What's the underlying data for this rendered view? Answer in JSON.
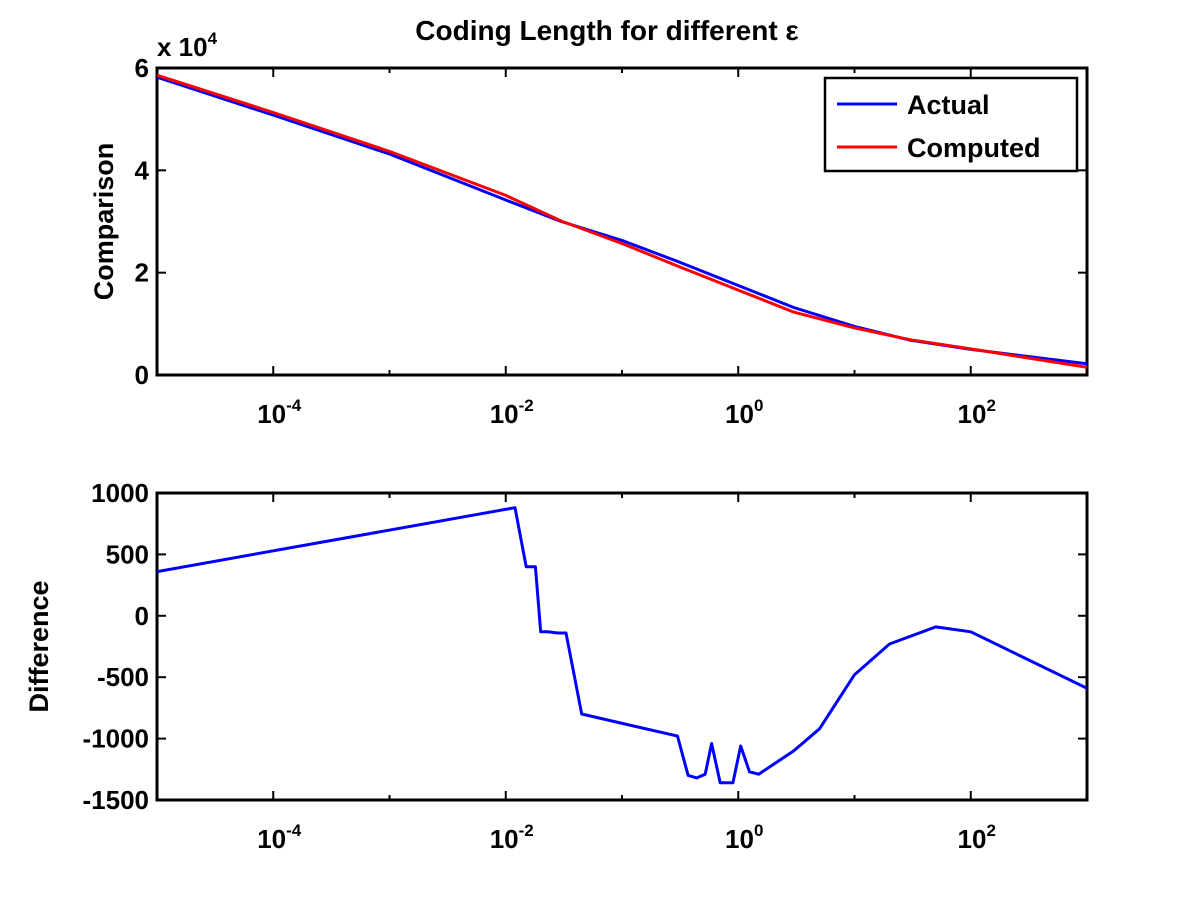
{
  "figure": {
    "title": "Coding Length for different ε"
  },
  "chart_data": [
    {
      "type": "line",
      "xscale": "log",
      "xlim": [
        1e-05,
        1000
      ],
      "ylim": [
        0,
        60000
      ],
      "ylabel": "Comparison",
      "exponent_label": {
        "prefix": "x 10",
        "power": "4"
      },
      "y_ticks": [
        {
          "value": 0,
          "label": "0"
        },
        {
          "value": 20000,
          "label": "2"
        },
        {
          "value": 40000,
          "label": "4"
        },
        {
          "value": 60000,
          "label": "6"
        }
      ],
      "x_ticks": [
        {
          "value": 0.0001,
          "base": "10",
          "exp": "-4"
        },
        {
          "value": 0.01,
          "base": "10",
          "exp": "-2"
        },
        {
          "value": 1,
          "base": "10",
          "exp": "0"
        },
        {
          "value": 100,
          "base": "10",
          "exp": "2"
        }
      ],
      "legend": {
        "placement": "top-right"
      },
      "series": [
        {
          "name": "Actual",
          "color": "#0000ff",
          "x": [
            1e-05,
            0.0001,
            0.001,
            0.01,
            0.03,
            0.1,
            0.3,
            1,
            3,
            10,
            30,
            100,
            1000
          ],
          "y": [
            58200,
            50800,
            43200,
            34200,
            30000,
            26300,
            22200,
            17500,
            13200,
            9500,
            6800,
            5000,
            2200
          ]
        },
        {
          "name": "Computed",
          "color": "#ff0000",
          "x": [
            1e-05,
            0.0001,
            0.001,
            0.01,
            0.03,
            0.1,
            0.3,
            1,
            3,
            10,
            30,
            100,
            1000
          ],
          "y": [
            58600,
            51300,
            43700,
            35100,
            30100,
            25700,
            21300,
            16600,
            12300,
            9200,
            6900,
            5100,
            1500
          ]
        }
      ]
    },
    {
      "type": "line",
      "xscale": "log",
      "xlim": [
        1e-05,
        1000
      ],
      "ylim": [
        -1500,
        1000
      ],
      "ylabel": "Difference",
      "y_ticks": [
        {
          "value": 1000,
          "label": "1000"
        },
        {
          "value": 500,
          "label": "500"
        },
        {
          "value": 0,
          "label": "0"
        },
        {
          "value": -500,
          "label": "-500"
        },
        {
          "value": -1000,
          "label": "-1000"
        },
        {
          "value": -1500,
          "label": "-1500"
        }
      ],
      "x_ticks": [
        {
          "value": 0.0001,
          "base": "10",
          "exp": "-4"
        },
        {
          "value": 0.01,
          "base": "10",
          "exp": "-2"
        },
        {
          "value": 1,
          "base": "10",
          "exp": "0"
        },
        {
          "value": 100,
          "base": "10",
          "exp": "2"
        }
      ],
      "series": [
        {
          "color": "#0000ff",
          "x": [
            1e-05,
            0.012,
            0.015,
            0.018,
            0.02,
            0.023,
            0.028,
            0.033,
            0.045,
            0.3,
            0.37,
            0.44,
            0.52,
            0.59,
            0.7,
            0.9,
            1.05,
            1.25,
            1.5,
            3,
            5,
            10,
            20,
            50,
            100,
            1000
          ],
          "y": [
            360,
            880,
            400,
            400,
            -130,
            -130,
            -140,
            -140,
            -800,
            -980,
            -1300,
            -1320,
            -1290,
            -1040,
            -1360,
            -1360,
            -1060,
            -1270,
            -1290,
            -1100,
            -920,
            -480,
            -230,
            -90,
            -130,
            -590
          ]
        }
      ]
    }
  ]
}
